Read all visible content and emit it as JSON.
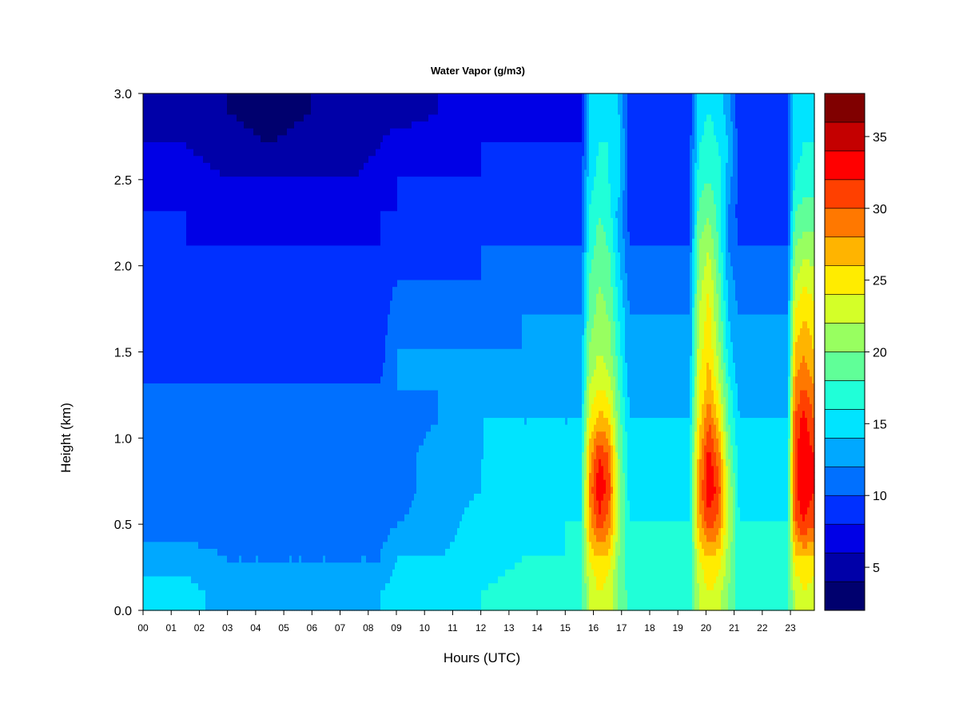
{
  "chart_data": {
    "type": "heatmap",
    "title": "Water Vapor (g/m3)",
    "xlabel": "Hours (UTC)",
    "ylabel": "Height (km)",
    "x_ticks": [
      "00",
      "01",
      "02",
      "03",
      "04",
      "05",
      "06",
      "07",
      "08",
      "09",
      "10",
      "11",
      "12",
      "13",
      "14",
      "15",
      "16",
      "17",
      "18",
      "19",
      "20",
      "21",
      "22",
      "23"
    ],
    "xlim": [
      0,
      23.85
    ],
    "y_ticks": [
      "0.0",
      "0.5",
      "1.0",
      "1.5",
      "2.0",
      "2.5",
      "3.0"
    ],
    "ylim": [
      0,
      3.0
    ],
    "grid": false,
    "legend": "right colorbar",
    "colorbar": {
      "levels": [
        2,
        4,
        6,
        8,
        10,
        12,
        14,
        16,
        18,
        20,
        22,
        24,
        26,
        28,
        30,
        32,
        34,
        36,
        38
      ],
      "tick_labels": [
        "5",
        "10",
        "15",
        "20",
        "25",
        "30",
        "35"
      ],
      "tick_values": [
        5,
        10,
        15,
        20,
        25,
        30,
        35
      ],
      "colors": [
        "#00006e",
        "#0000a8",
        "#0000e6",
        "#0030ff",
        "#0070ff",
        "#00a8ff",
        "#00e4ff",
        "#20ffd8",
        "#60ff98",
        "#98ff60",
        "#d4ff28",
        "#ffec00",
        "#ffb400",
        "#ff7800",
        "#ff4000",
        "#ff0000",
        "#c40000",
        "#800000"
      ]
    },
    "profiles": [
      {
        "hour": 0.0,
        "wv": [
          15,
          13,
          11,
          10,
          10,
          10,
          10,
          9,
          9,
          9,
          8,
          8,
          7,
          6,
          5
        ]
      },
      {
        "hour": 1.5,
        "wv": [
          15,
          13,
          11,
          10,
          10,
          10,
          10,
          9,
          9,
          9,
          8,
          8,
          7,
          6,
          5
        ]
      },
      {
        "hour": 3.0,
        "wv": [
          13,
          12,
          11,
          10,
          10,
          10,
          10,
          9,
          9,
          9,
          8,
          7,
          6,
          5,
          4
        ]
      },
      {
        "hour": 4.5,
        "wv": [
          13,
          12,
          10,
          10,
          10,
          10,
          10,
          9,
          9,
          9,
          8,
          7,
          6,
          4,
          3
        ]
      },
      {
        "hour": 6.0,
        "wv": [
          13,
          12,
          10,
          10,
          10,
          10,
          10,
          9,
          9,
          9,
          8,
          7,
          6,
          5,
          4
        ]
      },
      {
        "hour": 7.5,
        "wv": [
          13,
          12,
          11,
          10,
          10,
          10,
          10,
          9,
          9,
          9,
          8,
          7,
          6,
          5,
          4
        ]
      },
      {
        "hour": 8.4,
        "wv": [
          14,
          12,
          11,
          10,
          10,
          10,
          10,
          9,
          9,
          9,
          8,
          8,
          7,
          6,
          5
        ]
      },
      {
        "hour": 9.0,
        "wv": [
          15,
          14,
          12,
          11,
          11,
          11,
          12,
          12,
          11,
          10,
          9,
          8,
          8,
          7,
          5
        ]
      },
      {
        "hour": 10.5,
        "wv": [
          15,
          14,
          13,
          13,
          13,
          12,
          12,
          12,
          11,
          10,
          9,
          9,
          8,
          7,
          6
        ]
      },
      {
        "hour": 12.0,
        "wv": [
          16,
          15,
          15,
          14,
          14,
          14,
          13,
          12,
          11,
          10,
          10,
          9,
          8,
          8,
          6
        ]
      },
      {
        "hour": 13.5,
        "wv": [
          17,
          16,
          15,
          15,
          14,
          14,
          13,
          12,
          12,
          11,
          10,
          9,
          8,
          8,
          7
        ]
      },
      {
        "hour": 15.0,
        "wv": [
          17,
          16,
          16,
          15,
          15,
          14,
          13,
          12,
          12,
          11,
          10,
          9,
          9,
          8,
          7
        ]
      },
      {
        "hour": 15.55,
        "wv": [
          17,
          16,
          16,
          15,
          15,
          14,
          13,
          12,
          12,
          11,
          10,
          9,
          9,
          8,
          7
        ]
      },
      {
        "hour": 15.85,
        "wv": [
          22,
          24,
          27,
          28,
          27,
          24,
          22,
          20,
          19,
          18,
          17,
          16,
          15,
          14,
          14
        ]
      },
      {
        "hour": 16.2,
        "wv": [
          24,
          26,
          31,
          34,
          32,
          27,
          24,
          22,
          21,
          20,
          19,
          18,
          17,
          16,
          15
        ]
      },
      {
        "hour": 16.55,
        "wv": [
          23,
          25,
          29,
          31,
          30,
          26,
          23,
          21,
          20,
          19,
          18,
          17,
          16,
          16,
          15
        ]
      },
      {
        "hour": 16.9,
        "wv": [
          20,
          20,
          21,
          21,
          20,
          19,
          18,
          17,
          16,
          15,
          14,
          13,
          15,
          15,
          14
        ]
      },
      {
        "hour": 17.3,
        "wv": [
          17,
          16,
          16,
          15,
          15,
          14,
          13,
          12,
          12,
          11,
          10,
          9,
          9,
          9,
          9
        ]
      },
      {
        "hour": 19.4,
        "wv": [
          17,
          16,
          16,
          15,
          15,
          14,
          13,
          12,
          12,
          11,
          10,
          9,
          9,
          9,
          8
        ]
      },
      {
        "hour": 19.75,
        "wv": [
          22,
          24,
          27,
          28,
          27,
          25,
          24,
          23,
          22,
          21,
          20,
          19,
          17,
          16,
          15
        ]
      },
      {
        "hour": 20.1,
        "wv": [
          24,
          26,
          31,
          34,
          33,
          30,
          27,
          26,
          25,
          24,
          22,
          20,
          18,
          17,
          16
        ]
      },
      {
        "hour": 20.45,
        "wv": [
          23,
          25,
          29,
          31,
          29,
          26,
          23,
          21,
          20,
          19,
          18,
          17,
          17,
          16,
          15
        ]
      },
      {
        "hour": 20.8,
        "wv": [
          20,
          21,
          22,
          22,
          20,
          18,
          17,
          15,
          14,
          13,
          12,
          12,
          13,
          14,
          13
        ]
      },
      {
        "hour": 21.2,
        "wv": [
          17,
          16,
          16,
          15,
          15,
          14,
          13,
          12,
          12,
          11,
          10,
          9,
          9,
          9,
          8
        ]
      },
      {
        "hour": 22.9,
        "wv": [
          17,
          16,
          16,
          15,
          15,
          14,
          13,
          12,
          12,
          11,
          10,
          9,
          9,
          9,
          9
        ]
      },
      {
        "hour": 23.15,
        "wv": [
          22,
          25,
          29,
          31,
          31,
          30,
          28,
          26,
          24,
          22,
          20,
          18,
          16,
          15,
          15
        ]
      },
      {
        "hour": 23.45,
        "wv": [
          24,
          26,
          32,
          34,
          34,
          33,
          30,
          28,
          26,
          24,
          21,
          19,
          17,
          16,
          15
        ]
      },
      {
        "hour": 23.85,
        "wv": [
          23,
          25,
          30,
          32,
          32,
          30,
          28,
          26,
          25,
          23,
          21,
          19,
          17,
          16,
          15
        ]
      }
    ],
    "profile_heights_km": [
      0.0,
      0.2,
      0.4,
      0.6,
      0.8,
      1.0,
      1.2,
      1.4,
      1.6,
      1.8,
      2.0,
      2.2,
      2.4,
      2.6,
      2.8,
      3.0
    ]
  }
}
